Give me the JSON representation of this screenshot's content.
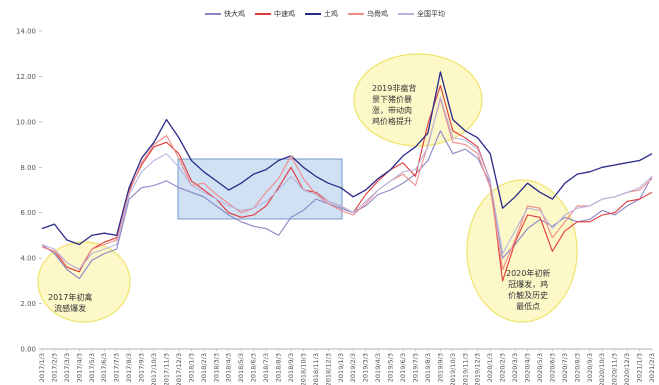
{
  "chart_data": {
    "type": "line",
    "title": "",
    "xlabel": "",
    "ylabel": "",
    "ylim": [
      0,
      14
    ],
    "y_ticks": [
      "0.00",
      "2.00",
      "4.00",
      "6.00",
      "8.00",
      "10.00",
      "12.00",
      "14.00"
    ],
    "grid": false,
    "legend_position": "top",
    "x": [
      "2017/1/3",
      "2017/2/3",
      "2017/3/3",
      "2017/4/3",
      "2017/5/3",
      "2017/6/3",
      "2017/7/3",
      "2017/8/3",
      "2017/9/3",
      "2017/10/3",
      "2017/11/3",
      "2017/12/3",
      "2018/1/3",
      "2018/2/3",
      "2018/3/3",
      "2018/4/3",
      "2018/5/3",
      "2018/6/3",
      "2018/7/3",
      "2018/8/3",
      "2018/9/3",
      "2018/10/3",
      "2018/11/3",
      "2018/12/3",
      "2019/1/3",
      "2019/2/3",
      "2019/3/3",
      "2019/4/3",
      "2019/5/3",
      "2019/6/3",
      "2019/7/3",
      "2019/8/3",
      "2019/9/3",
      "2019/10/3",
      "2019/11/3",
      "2019/12/3",
      "2020/1/3",
      "2020/2/3",
      "2020/3/3",
      "2020/4/3",
      "2020/5/3",
      "2020/6/3",
      "2020/7/3",
      "2020/8/3",
      "2020/9/3",
      "2020/10/3",
      "2020/11/3",
      "2020/12/3",
      "2021/1/3",
      "2021/2/3"
    ],
    "series": [
      {
        "name": "快大鸡",
        "color": "#8b86c6",
        "values": [
          4.6,
          4.2,
          3.5,
          3.1,
          3.9,
          4.2,
          4.4,
          6.6,
          7.1,
          7.2,
          7.4,
          7.1,
          6.9,
          6.7,
          6.3,
          5.9,
          5.6,
          5.4,
          5.3,
          5.0,
          5.8,
          6.1,
          6.6,
          6.4,
          6.2,
          6.0,
          6.3,
          6.8,
          7.0,
          7.3,
          7.7,
          8.3,
          9.6,
          8.6,
          8.8,
          8.4,
          7.3,
          4.0,
          4.6,
          5.3,
          5.7,
          5.4,
          5.8,
          5.6,
          5.7,
          6.1,
          5.9,
          6.3,
          6.6,
          7.6
        ]
      },
      {
        "name": "中速鸡",
        "color": "#e03a3a",
        "values": [
          4.5,
          4.3,
          3.6,
          3.4,
          4.4,
          4.7,
          4.9,
          7.0,
          8.1,
          8.9,
          9.1,
          8.6,
          7.4,
          7.0,
          6.6,
          6.0,
          5.8,
          5.9,
          6.3,
          7.1,
          8.0,
          7.0,
          6.9,
          6.5,
          6.3,
          6.0,
          6.8,
          7.4,
          7.9,
          8.2,
          7.6,
          9.9,
          11.6,
          9.6,
          9.3,
          8.9,
          7.4,
          3.0,
          4.7,
          5.9,
          5.8,
          4.3,
          5.2,
          5.6,
          5.6,
          5.9,
          6.0,
          6.5,
          6.6,
          6.9
        ]
      },
      {
        "name": "土鸡",
        "color": "#2b2a8a",
        "values": [
          5.3,
          5.5,
          4.8,
          4.6,
          5.0,
          5.1,
          5.0,
          7.1,
          8.4,
          9.1,
          10.1,
          9.3,
          8.3,
          7.8,
          7.4,
          7.0,
          7.3,
          7.7,
          7.9,
          8.3,
          8.5,
          8.0,
          7.6,
          7.3,
          7.1,
          6.7,
          7.0,
          7.5,
          7.9,
          8.5,
          8.9,
          9.5,
          12.2,
          10.1,
          9.6,
          9.3,
          8.6,
          6.2,
          6.7,
          7.3,
          6.9,
          6.6,
          7.3,
          7.7,
          7.8,
          8.0,
          8.1,
          8.2,
          8.3,
          8.6
        ]
      },
      {
        "name": "乌骨鸡",
        "color": "#f08a8a",
        "values": [
          4.5,
          4.3,
          3.8,
          3.5,
          4.4,
          4.6,
          4.8,
          6.9,
          8.2,
          9.0,
          9.4,
          8.4,
          7.2,
          7.3,
          6.8,
          6.4,
          6.0,
          6.2,
          6.9,
          7.5,
          8.5,
          7.5,
          6.8,
          6.4,
          6.1,
          5.9,
          6.4,
          7.0,
          7.4,
          7.7,
          7.2,
          9.0,
          11.0,
          9.1,
          9.0,
          8.6,
          7.1,
          3.5,
          4.8,
          6.3,
          6.2,
          4.9,
          5.6,
          6.3,
          6.3,
          6.6,
          6.7,
          6.9,
          7.0,
          7.5
        ]
      },
      {
        "name": "全国平均",
        "color": "#b9b5e0",
        "values": [
          4.6,
          4.4,
          3.8,
          3.5,
          4.2,
          4.4,
          4.6,
          6.8,
          7.8,
          8.3,
          8.6,
          8.0,
          7.2,
          6.9,
          6.6,
          6.3,
          6.1,
          6.2,
          6.5,
          7.0,
          7.6,
          7.0,
          6.8,
          6.5,
          6.3,
          6.0,
          6.5,
          7.0,
          7.4,
          7.8,
          7.9,
          8.9,
          11.1,
          9.3,
          9.2,
          8.8,
          7.4,
          4.2,
          5.2,
          6.2,
          6.1,
          5.3,
          5.9,
          6.2,
          6.3,
          6.6,
          6.7,
          6.9,
          7.1,
          7.6
        ]
      }
    ],
    "annotations": [
      {
        "lines": [
          "2017年初禽",
          "流感爆发"
        ]
      },
      {
        "lines": [
          "2019非瘟背",
          "景下猪价暴",
          "涨，带动肉",
          "鸡价格提升"
        ]
      },
      {
        "lines": [
          "2020年初新",
          "冠爆发，鸡",
          "价触及历史",
          "最低点"
        ]
      }
    ]
  }
}
